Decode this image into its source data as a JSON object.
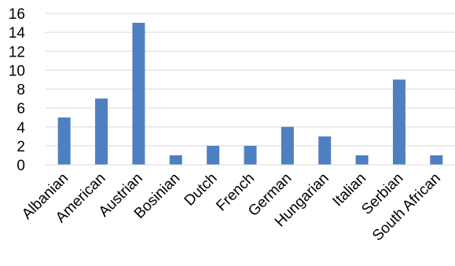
{
  "chart_data": {
    "type": "bar",
    "title": "",
    "xlabel": "",
    "ylabel": "",
    "categories": [
      "Albanian",
      "American",
      "Austrian",
      "Bosinian",
      "Dutch",
      "French",
      "German",
      "Hungarian",
      "Italian",
      "Serbian",
      "South African"
    ],
    "values": [
      5,
      7,
      15,
      1,
      2,
      2,
      4,
      3,
      1,
      9,
      1
    ],
    "ylim": [
      0,
      16
    ],
    "yticks": [
      0,
      2,
      4,
      6,
      8,
      10,
      12,
      14,
      16
    ],
    "grid": true,
    "legend": "none",
    "colors": {
      "bar": "#4e7fc1",
      "grid": "#d9d9d9",
      "axis": "#d9d9d9",
      "text": "#000000"
    }
  }
}
